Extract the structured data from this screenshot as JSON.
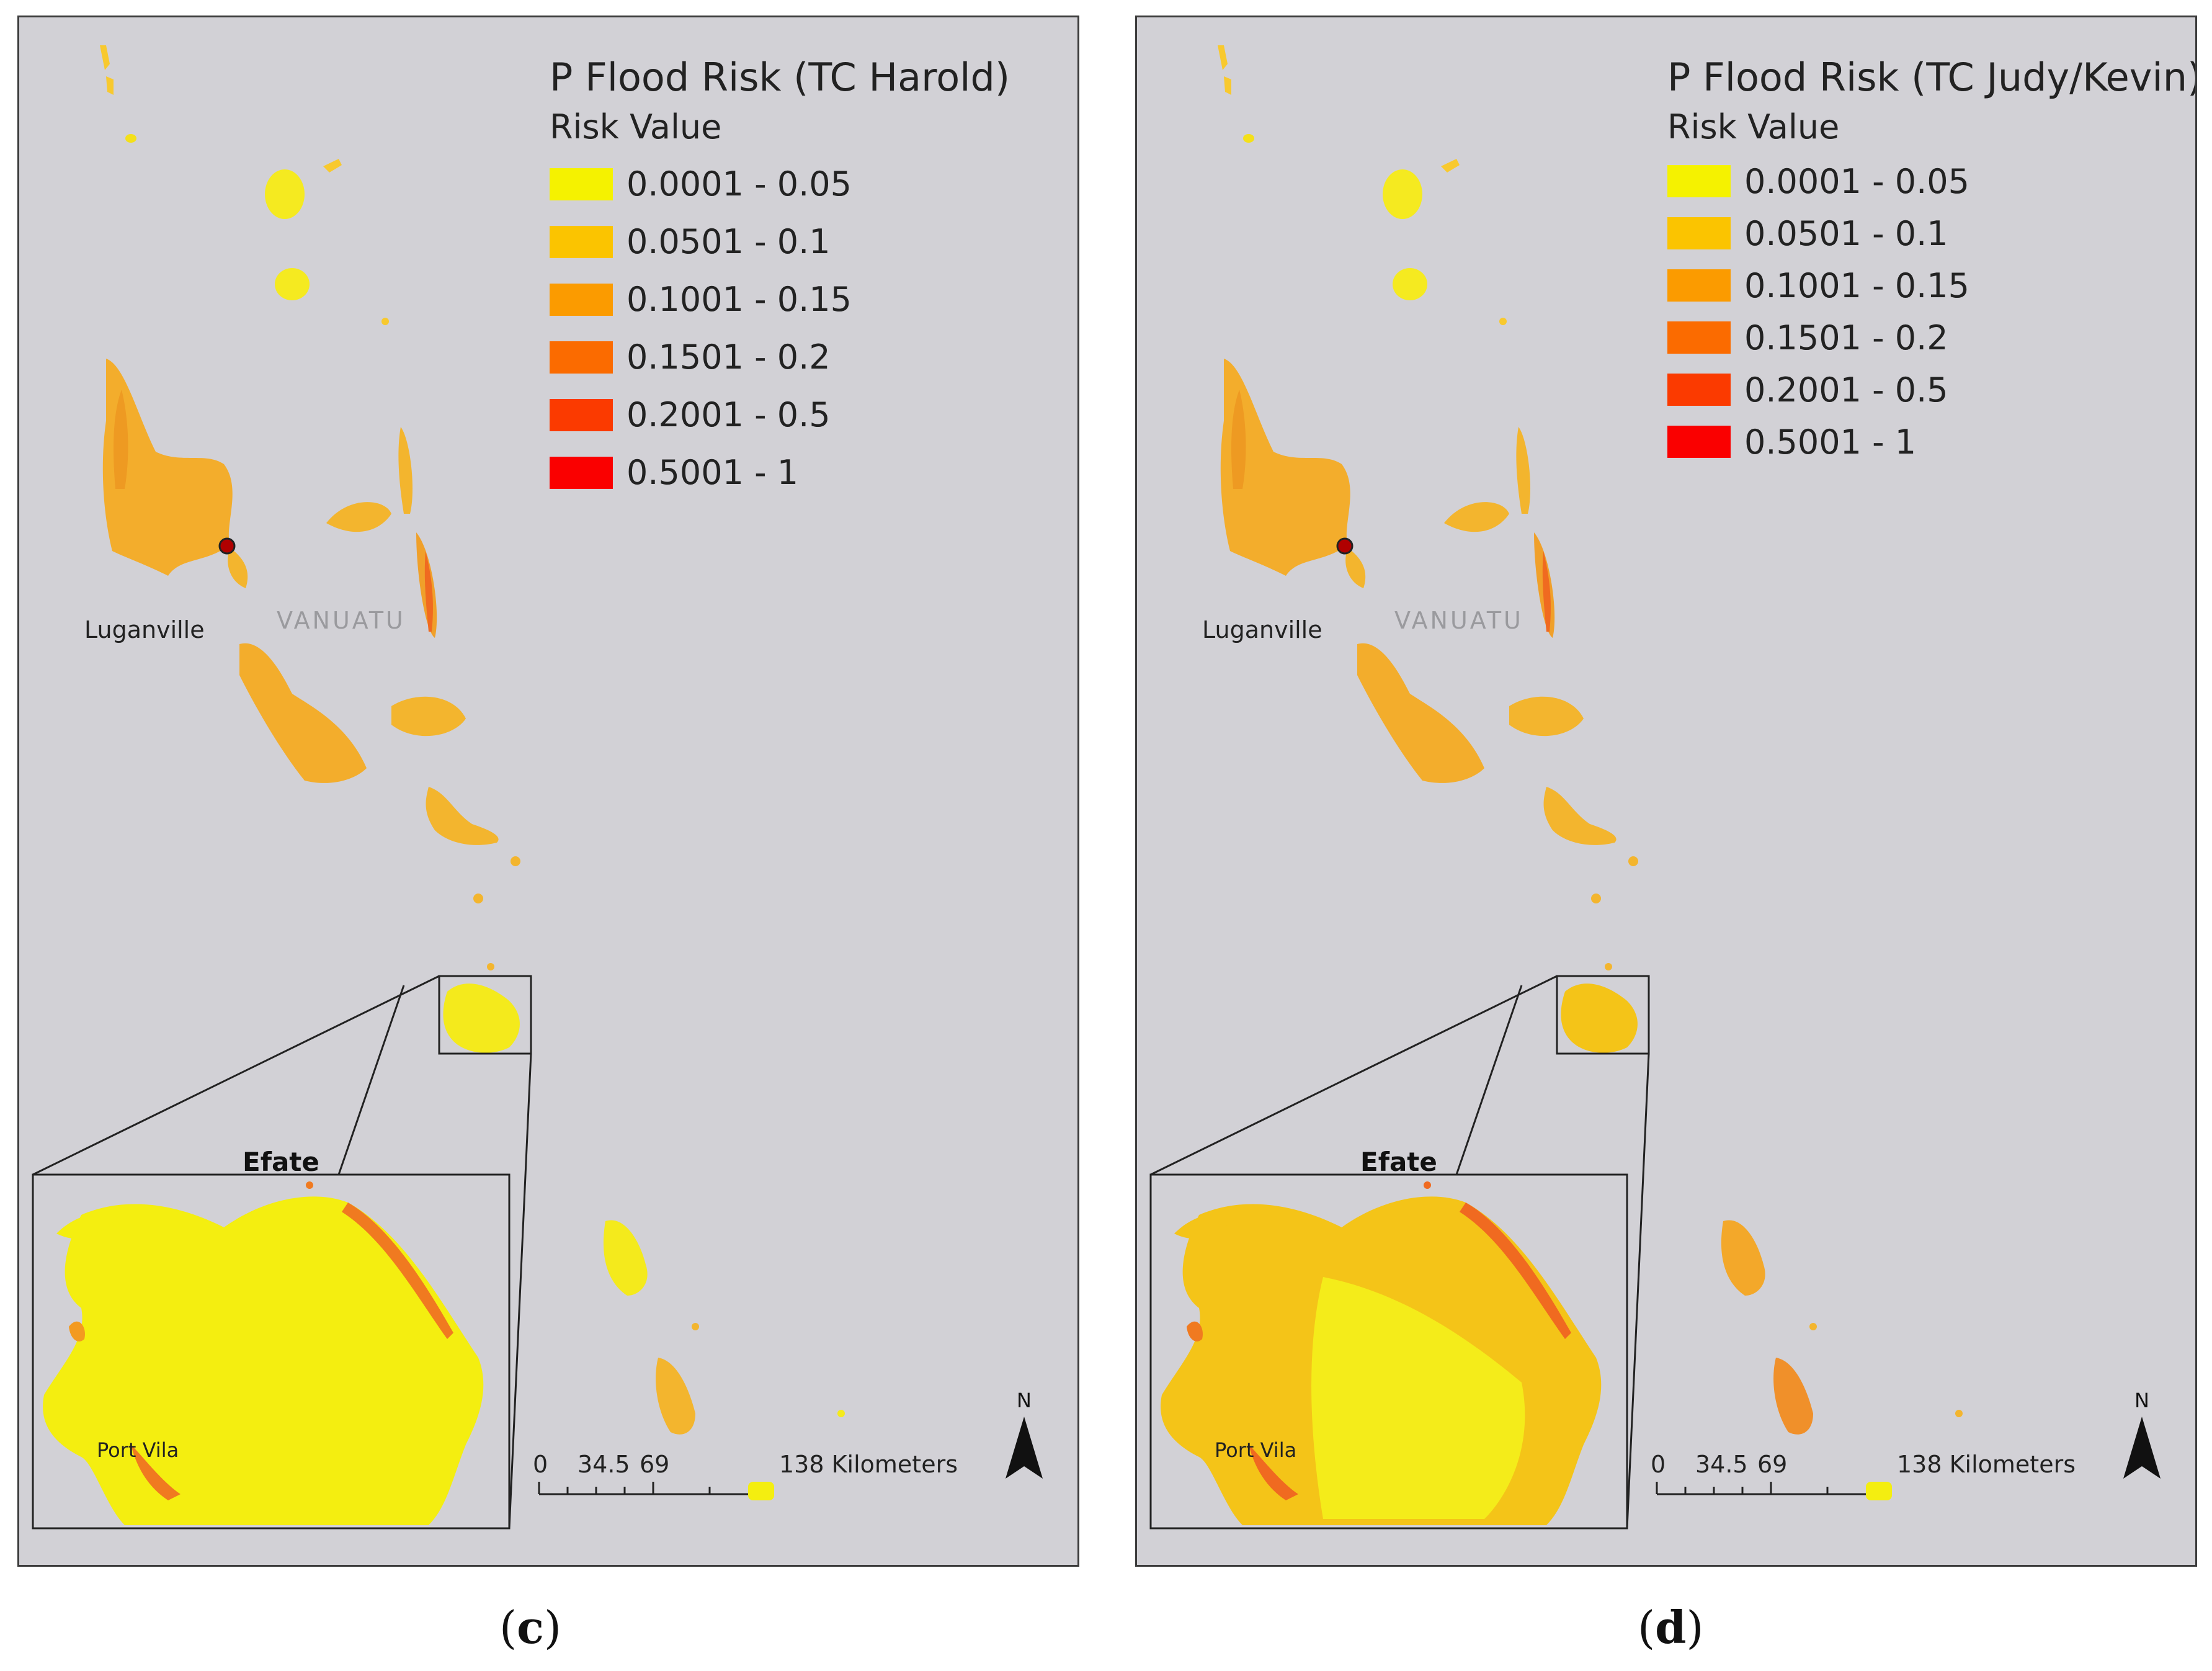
{
  "panels": [
    {
      "id": "c",
      "legend_title": "P Flood Risk (TC Harold)",
      "legend_subtitle": "Risk Value",
      "classes": [
        {
          "label": "0.0001 - 0.05",
          "color": "#f5f200"
        },
        {
          "label": "0.0501 - 0.1",
          "color": "#fbc400"
        },
        {
          "label": "0.1001 - 0.15",
          "color": "#fb9b00"
        },
        {
          "label": "0.1501 - 0.2",
          "color": "#fb6b00"
        },
        {
          "label": "0.2001 - 0.5",
          "color": "#fb3a00"
        },
        {
          "label": "0.5001 - 1",
          "color": "#fa0000"
        }
      ],
      "city_label": "Luganville",
      "country_label": "VANUATU",
      "inset_title": "Efate",
      "inset_city": "Port Vila",
      "scale": {
        "t0": "0",
        "t1": "34.5",
        "t2": "69",
        "t3": "138 Kilometers"
      },
      "north_label": "N",
      "caption_open": "(",
      "caption_letter": "c",
      "caption_close": ")"
    },
    {
      "id": "d",
      "legend_title": "P Flood Risk (TC Judy/Kevin)",
      "legend_subtitle": "Risk Value",
      "classes": [
        {
          "label": "0.0001 - 0.05",
          "color": "#f5f200"
        },
        {
          "label": "0.0501 - 0.1",
          "color": "#fbc400"
        },
        {
          "label": "0.1001 - 0.15",
          "color": "#fb9b00"
        },
        {
          "label": "0.1501 - 0.2",
          "color": "#fb6b00"
        },
        {
          "label": "0.2001 - 0.5",
          "color": "#fb3a00"
        },
        {
          "label": "0.5001 - 1",
          "color": "#fa0000"
        }
      ],
      "city_label": "Luganville",
      "country_label": "VANUATU",
      "inset_title": "Efate",
      "inset_city": "Port Vila",
      "scale": {
        "t0": "0",
        "t1": "34.5",
        "t2": "69",
        "t3": "138 Kilometers"
      },
      "north_label": "N",
      "caption_open": "(",
      "caption_letter": "d",
      "caption_close": ")"
    }
  ],
  "colors": {
    "map_background": "#d2d1d6",
    "main_island_c": "#f7b52e",
    "main_island_d": "#f7b52e",
    "inset_fill_c": "#f4ee10",
    "inset_fill_d": "#f4c418",
    "city_marker": "#b00000"
  }
}
